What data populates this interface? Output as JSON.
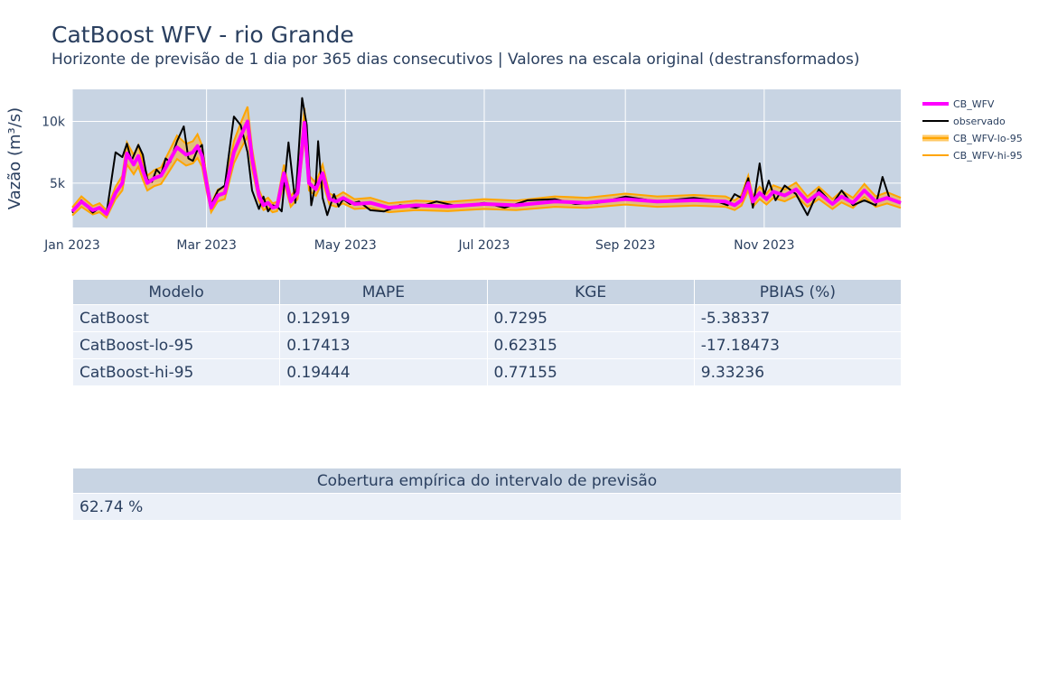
{
  "header": {
    "title": "CatBoost WFV - rio Grande",
    "subtitle": "Horizonte de previsão de 1 dia por 365 dias consecutivos | Valores na escala original (destransformados)"
  },
  "chart_data": {
    "type": "line",
    "ylabel": "Vazão (m³/s)",
    "x_range": [
      "2023-01-01",
      "2023-12-31"
    ],
    "ylim": [
      1400,
      12600
    ],
    "x_ticks": [
      "Jan 2023",
      "Mar 2023",
      "May 2023",
      "Jul 2023",
      "Sep 2023",
      "Nov 2023"
    ],
    "x_tick_dates": [
      "2023-01-01",
      "2023-03-01",
      "2023-05-01",
      "2023-07-01",
      "2023-09-01",
      "2023-11-01"
    ],
    "y_ticks": [
      "5k",
      "10k"
    ],
    "y_tick_values": [
      5000,
      10000
    ],
    "grid": true,
    "legend_position": "right",
    "colors": {
      "forecast": "#ff00ff",
      "observed": "#000000",
      "band": "#ffa500",
      "plot_bg": "#c8d4e3"
    },
    "series": [
      {
        "name": "observado",
        "x": [
          "2023-01-01",
          "2023-01-05",
          "2023-01-10",
          "2023-01-13",
          "2023-01-16",
          "2023-01-20",
          "2023-01-23",
          "2023-01-25",
          "2023-01-27",
          "2023-01-30",
          "2023-02-01",
          "2023-02-03",
          "2023-02-05",
          "2023-02-07",
          "2023-02-09",
          "2023-02-11",
          "2023-02-13",
          "2023-02-16",
          "2023-02-19",
          "2023-02-21",
          "2023-02-23",
          "2023-02-25",
          "2023-02-27",
          "2023-03-01",
          "2023-03-03",
          "2023-03-06",
          "2023-03-09",
          "2023-03-13",
          "2023-03-16",
          "2023-03-19",
          "2023-03-21",
          "2023-03-24",
          "2023-03-26",
          "2023-03-28",
          "2023-03-30",
          "2023-04-01",
          "2023-04-03",
          "2023-04-06",
          "2023-04-09",
          "2023-04-12",
          "2023-04-14",
          "2023-04-16",
          "2023-04-18",
          "2023-04-19",
          "2023-04-21",
          "2023-04-23",
          "2023-04-26",
          "2023-04-28",
          "2023-04-30",
          "2023-05-03",
          "2023-05-07",
          "2023-05-12",
          "2023-05-18",
          "2023-05-25",
          "2023-06-01",
          "2023-06-10",
          "2023-06-20",
          "2023-07-01",
          "2023-07-10",
          "2023-07-20",
          "2023-08-01",
          "2023-08-10",
          "2023-08-20",
          "2023-09-01",
          "2023-09-15",
          "2023-10-01",
          "2023-10-10",
          "2023-10-16",
          "2023-10-19",
          "2023-10-22",
          "2023-10-25",
          "2023-10-27",
          "2023-10-30",
          "2023-11-01",
          "2023-11-03",
          "2023-11-06",
          "2023-11-10",
          "2023-11-15",
          "2023-11-20",
          "2023-11-25",
          "2023-12-01",
          "2023-12-05",
          "2023-12-10",
          "2023-12-15",
          "2023-12-20",
          "2023-12-23",
          "2023-12-26",
          "2023-12-31"
        ],
        "y": [
          2600,
          3600,
          2600,
          3000,
          2500,
          7500,
          7100,
          8200,
          6800,
          8100,
          7300,
          5300,
          5100,
          6100,
          5700,
          7000,
          6700,
          8400,
          9600,
          7000,
          6800,
          7700,
          8100,
          5000,
          3200,
          4400,
          4800,
          10400,
          9700,
          7500,
          4400,
          2900,
          3900,
          2700,
          3200,
          3100,
          2700,
          8300,
          3400,
          11900,
          9700,
          3200,
          5000,
          8400,
          3800,
          2400,
          4100,
          3100,
          3700,
          3300,
          3500,
          2800,
          2700,
          3200,
          3000,
          3500,
          3100,
          3400,
          3000,
          3600,
          3700,
          3300,
          3400,
          3900,
          3500,
          3800,
          3600,
          3200,
          4100,
          3800,
          5400,
          3000,
          6600,
          4000,
          5200,
          3600,
          4800,
          4100,
          2400,
          4500,
          3300,
          4400,
          3200,
          3600,
          3200,
          5500,
          3800,
          3400
        ]
      },
      {
        "name": "CB_WFV",
        "x": [
          "2023-01-01",
          "2023-01-05",
          "2023-01-10",
          "2023-01-13",
          "2023-01-16",
          "2023-01-20",
          "2023-01-23",
          "2023-01-25",
          "2023-01-28",
          "2023-01-30",
          "2023-02-01",
          "2023-02-03",
          "2023-02-06",
          "2023-02-09",
          "2023-02-13",
          "2023-02-16",
          "2023-02-20",
          "2023-02-23",
          "2023-02-25",
          "2023-02-27",
          "2023-03-01",
          "2023-03-03",
          "2023-03-06",
          "2023-03-09",
          "2023-03-13",
          "2023-03-16",
          "2023-03-19",
          "2023-03-21",
          "2023-03-24",
          "2023-03-26",
          "2023-03-28",
          "2023-03-30",
          "2023-04-01",
          "2023-04-04",
          "2023-04-07",
          "2023-04-10",
          "2023-04-13",
          "2023-04-15",
          "2023-04-18",
          "2023-04-21",
          "2023-04-24",
          "2023-04-27",
          "2023-04-30",
          "2023-05-05",
          "2023-05-12",
          "2023-05-20",
          "2023-06-01",
          "2023-06-15",
          "2023-07-01",
          "2023-07-15",
          "2023-08-01",
          "2023-08-15",
          "2023-09-01",
          "2023-09-15",
          "2023-10-01",
          "2023-10-15",
          "2023-10-19",
          "2023-10-22",
          "2023-10-25",
          "2023-10-27",
          "2023-10-30",
          "2023-11-02",
          "2023-11-05",
          "2023-11-10",
          "2023-11-15",
          "2023-11-20",
          "2023-11-25",
          "2023-12-01",
          "2023-12-05",
          "2023-12-10",
          "2023-12-15",
          "2023-12-20",
          "2023-12-25",
          "2023-12-31"
        ],
        "y": [
          2700,
          3500,
          2800,
          3000,
          2500,
          4200,
          5000,
          7400,
          6500,
          7200,
          6000,
          5000,
          5400,
          5600,
          6900,
          7900,
          7300,
          7500,
          8000,
          7200,
          5000,
          3000,
          4000,
          4200,
          7500,
          8800,
          10000,
          7000,
          4000,
          3200,
          3400,
          3000,
          3100,
          5800,
          3500,
          4200,
          9900,
          5000,
          4500,
          5800,
          3700,
          3500,
          3800,
          3300,
          3400,
          3000,
          3200,
          3100,
          3300,
          3200,
          3500,
          3400,
          3700,
          3500,
          3600,
          3500,
          3200,
          3600,
          5000,
          3500,
          4200,
          3700,
          4300,
          4000,
          4500,
          3500,
          4200,
          3300,
          3900,
          3400,
          4400,
          3500,
          3800,
          3400
        ]
      }
    ]
  },
  "legend": {
    "items": [
      "CB_WFV",
      "observado",
      "CB_WFV-lo-95",
      "CB_WFV-hi-95"
    ]
  },
  "metrics_table": {
    "headers": [
      "Modelo",
      "MAPE",
      "KGE",
      "PBIAS (%)"
    ],
    "rows": [
      [
        "CatBoost",
        "0.12919",
        "0.7295",
        "-5.38337"
      ],
      [
        "CatBoost-lo-95",
        "0.17413",
        "0.62315",
        "-17.18473"
      ],
      [
        "CatBoost-hi-95",
        "0.19444",
        "0.77155",
        "9.33236"
      ]
    ]
  },
  "coverage_table": {
    "header": "Cobertura empírica do intervalo de previsão",
    "value": "62.74 %"
  }
}
